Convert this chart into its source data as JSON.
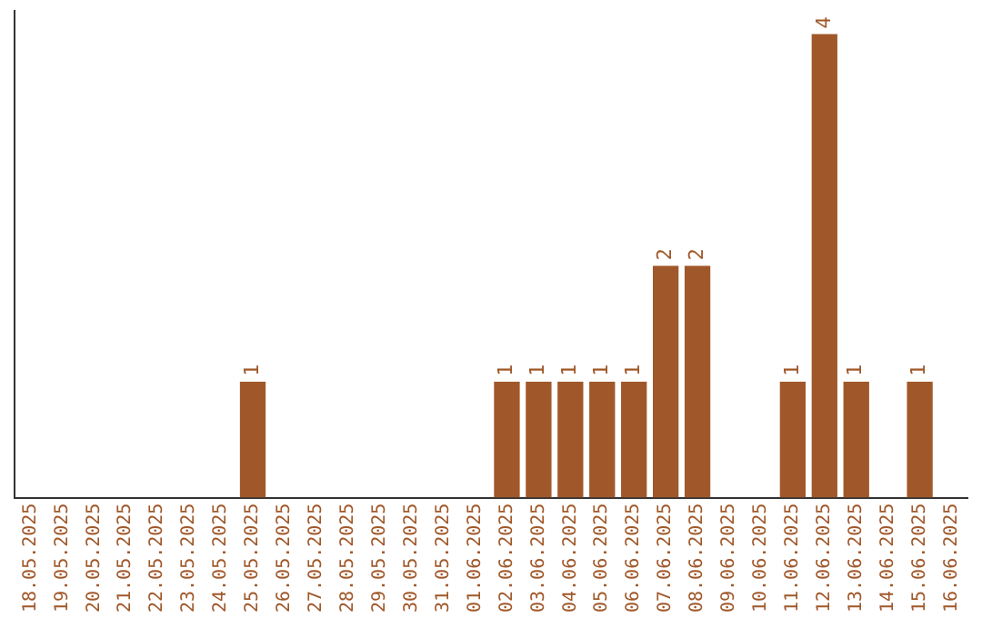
{
  "chart_data": {
    "type": "bar",
    "categories": [
      "18.05.2025",
      "19.05.2025",
      "20.05.2025",
      "21.05.2025",
      "22.05.2025",
      "23.05.2025",
      "24.05.2025",
      "25.05.2025",
      "26.05.2025",
      "27.05.2025",
      "28.05.2025",
      "29.05.2025",
      "30.05.2025",
      "31.05.2025",
      "01.06.2025",
      "02.06.2025",
      "03.06.2025",
      "04.06.2025",
      "05.06.2025",
      "06.06.2025",
      "07.06.2025",
      "08.06.2025",
      "09.06.2025",
      "10.06.2025",
      "11.06.2025",
      "12.06.2025",
      "13.06.2025",
      "14.06.2025",
      "15.06.2025",
      "16.06.2025"
    ],
    "values": [
      0,
      0,
      0,
      0,
      0,
      0,
      0,
      1,
      0,
      0,
      0,
      0,
      0,
      0,
      0,
      1,
      1,
      1,
      1,
      1,
      2,
      2,
      0,
      0,
      1,
      4,
      1,
      0,
      1,
      0
    ],
    "value_labels": [
      null,
      null,
      null,
      null,
      null,
      null,
      null,
      "1",
      null,
      null,
      null,
      null,
      null,
      null,
      null,
      "1",
      "1",
      "1",
      "1",
      "1",
      "2",
      "2",
      null,
      null,
      "1",
      "4",
      "1",
      null,
      "1",
      null
    ],
    "color": "#a0582a",
    "ylim": [
      0,
      4.2
    ],
    "tick_labels": "x",
    "grid": false,
    "legend": false
  }
}
